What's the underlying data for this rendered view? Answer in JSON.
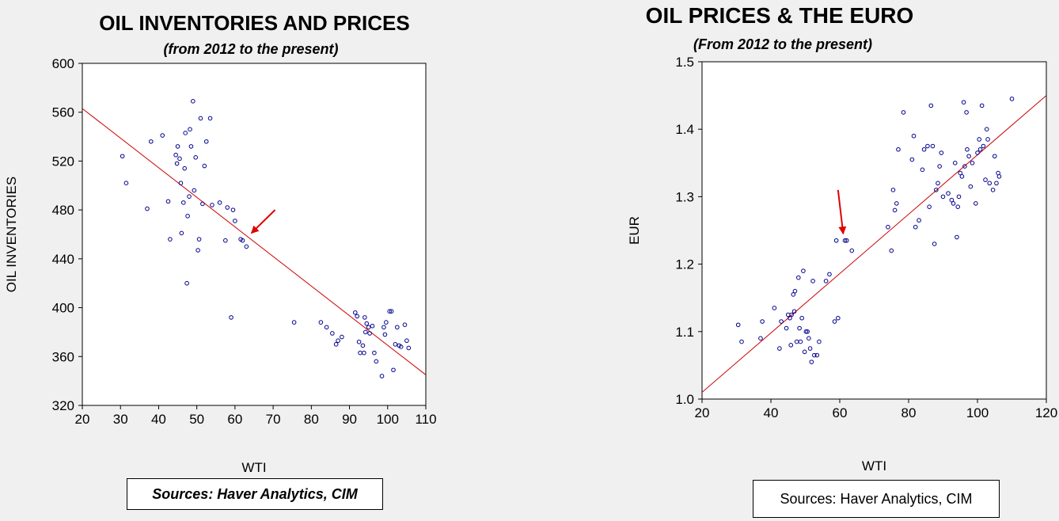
{
  "chart_data": [
    {
      "type": "scatter",
      "title": "OIL INVENTORIES AND PRICES",
      "subtitle": "(from 2012 to the present)",
      "xlabel": "WTI",
      "ylabel": "OIL INVENTORIES",
      "xlim": [
        20,
        110
      ],
      "ylim": [
        320,
        600
      ],
      "xticks": [
        20,
        30,
        40,
        50,
        60,
        70,
        80,
        90,
        100,
        110
      ],
      "yticks": [
        320,
        360,
        400,
        440,
        480,
        520,
        560,
        600
      ],
      "grid": false,
      "marker_color": "#00008b",
      "trend_color": "#cc0000",
      "arrow_color": "#e00000",
      "source": "Sources:  Haver Analytics, CIM",
      "trendline": [
        [
          20,
          563
        ],
        [
          110,
          345
        ]
      ],
      "annotation_arrow": {
        "from": [
          70.5,
          480
        ],
        "to": [
          64.3,
          461
        ]
      },
      "points": [
        [
          30.5,
          524
        ],
        [
          31.5,
          502
        ],
        [
          37,
          481
        ],
        [
          38,
          536
        ],
        [
          41,
          541
        ],
        [
          42.5,
          487
        ],
        [
          43,
          456
        ],
        [
          44.5,
          525
        ],
        [
          44.8,
          518
        ],
        [
          45,
          532
        ],
        [
          45.5,
          522
        ],
        [
          45.8,
          502
        ],
        [
          46,
          461
        ],
        [
          46.5,
          486
        ],
        [
          46.8,
          514
        ],
        [
          47,
          543
        ],
        [
          47.4,
          420
        ],
        [
          47.6,
          475
        ],
        [
          48,
          491
        ],
        [
          48.2,
          546
        ],
        [
          48.5,
          532
        ],
        [
          49,
          569
        ],
        [
          49.3,
          496
        ],
        [
          49.7,
          523
        ],
        [
          50.3,
          447
        ],
        [
          50.6,
          456
        ],
        [
          51,
          555
        ],
        [
          51.5,
          485
        ],
        [
          52,
          516
        ],
        [
          52.5,
          536
        ],
        [
          53.5,
          555
        ],
        [
          54,
          484
        ],
        [
          56,
          486
        ],
        [
          57.5,
          455
        ],
        [
          58,
          482
        ],
        [
          59,
          392
        ],
        [
          59.5,
          480
        ],
        [
          60,
          471
        ],
        [
          61.5,
          456
        ],
        [
          62,
          455
        ],
        [
          63,
          450
        ],
        [
          75.5,
          388
        ],
        [
          82.5,
          388
        ],
        [
          84,
          384
        ],
        [
          85.5,
          379
        ],
        [
          86.5,
          370
        ],
        [
          87,
          373
        ],
        [
          88,
          376
        ],
        [
          91.5,
          396
        ],
        [
          92,
          393
        ],
        [
          92.5,
          372
        ],
        [
          92.8,
          363
        ],
        [
          93.5,
          369
        ],
        [
          93.8,
          363
        ],
        [
          94,
          392
        ],
        [
          94.2,
          380
        ],
        [
          94.5,
          387
        ],
        [
          95,
          384
        ],
        [
          95.3,
          379
        ],
        [
          96,
          385
        ],
        [
          96.5,
          363
        ],
        [
          97,
          356
        ],
        [
          98.5,
          344
        ],
        [
          99,
          384
        ],
        [
          99.3,
          378
        ],
        [
          99.6,
          388
        ],
        [
          100.5,
          397
        ],
        [
          101,
          397
        ],
        [
          101.5,
          349
        ],
        [
          102,
          370
        ],
        [
          102.5,
          384
        ],
        [
          103,
          369
        ],
        [
          103.5,
          368
        ],
        [
          104.5,
          386
        ],
        [
          105,
          373
        ],
        [
          105.5,
          367
        ]
      ]
    },
    {
      "type": "scatter",
      "title": "OIL PRICES & THE EURO",
      "subtitle": "(From 2012 to the present)",
      "xlabel": "WTI",
      "ylabel": "EUR",
      "xlim": [
        20,
        120
      ],
      "ylim": [
        1.0,
        1.5
      ],
      "xticks": [
        20,
        40,
        60,
        80,
        100,
        120
      ],
      "yticks": [
        1.0,
        1.1,
        1.2,
        1.3,
        1.4,
        1.5
      ],
      "grid": false,
      "marker_color": "#00008b",
      "trend_color": "#cc0000",
      "arrow_color": "#e00000",
      "source": "Sources:  Haver Analytics, CIM",
      "trendline": [
        [
          20,
          1.01
        ],
        [
          120,
          1.45
        ]
      ],
      "annotation_arrow": {
        "from": [
          59.5,
          1.31
        ],
        "to": [
          61,
          1.245
        ]
      },
      "points": [
        [
          30.5,
          1.11
        ],
        [
          31.5,
          1.085
        ],
        [
          37,
          1.09
        ],
        [
          37.5,
          1.115
        ],
        [
          41,
          1.135
        ],
        [
          42.5,
          1.075
        ],
        [
          43,
          1.115
        ],
        [
          44.5,
          1.105
        ],
        [
          45,
          1.125
        ],
        [
          45.5,
          1.12
        ],
        [
          45.8,
          1.08
        ],
        [
          46,
          1.125
        ],
        [
          46.5,
          1.155
        ],
        [
          46.8,
          1.13
        ],
        [
          47,
          1.16
        ],
        [
          47.5,
          1.085
        ],
        [
          48,
          1.18
        ],
        [
          48.3,
          1.105
        ],
        [
          48.6,
          1.085
        ],
        [
          49,
          1.12
        ],
        [
          49.4,
          1.19
        ],
        [
          49.8,
          1.07
        ],
        [
          50.2,
          1.1
        ],
        [
          50.6,
          1.1
        ],
        [
          51,
          1.09
        ],
        [
          51.4,
          1.075
        ],
        [
          51.8,
          1.055
        ],
        [
          52.2,
          1.175
        ],
        [
          52.6,
          1.065
        ],
        [
          53.4,
          1.065
        ],
        [
          54,
          1.085
        ],
        [
          56,
          1.175
        ],
        [
          57,
          1.185
        ],
        [
          58.5,
          1.115
        ],
        [
          59,
          1.235
        ],
        [
          59.5,
          1.12
        ],
        [
          61.5,
          1.235
        ],
        [
          62,
          1.235
        ],
        [
          63.5,
          1.22
        ],
        [
          74,
          1.255
        ],
        [
          75,
          1.22
        ],
        [
          75.5,
          1.31
        ],
        [
          76,
          1.28
        ],
        [
          76.5,
          1.29
        ],
        [
          77,
          1.37
        ],
        [
          78.5,
          1.425
        ],
        [
          81,
          1.355
        ],
        [
          81.5,
          1.39
        ],
        [
          82,
          1.255
        ],
        [
          83,
          1.265
        ],
        [
          84,
          1.34
        ],
        [
          84.5,
          1.37
        ],
        [
          85.5,
          1.375
        ],
        [
          86,
          1.285
        ],
        [
          86.5,
          1.435
        ],
        [
          87,
          1.375
        ],
        [
          87.5,
          1.23
        ],
        [
          88,
          1.31
        ],
        [
          88.5,
          1.32
        ],
        [
          89,
          1.345
        ],
        [
          89.5,
          1.365
        ],
        [
          90,
          1.3
        ],
        [
          91.5,
          1.305
        ],
        [
          92.5,
          1.295
        ],
        [
          93,
          1.29
        ],
        [
          93.5,
          1.35
        ],
        [
          94,
          1.24
        ],
        [
          94.3,
          1.285
        ],
        [
          94.6,
          1.3
        ],
        [
          95,
          1.335
        ],
        [
          95.5,
          1.33
        ],
        [
          96,
          1.44
        ],
        [
          96.3,
          1.345
        ],
        [
          96.8,
          1.425
        ],
        [
          97,
          1.37
        ],
        [
          97.5,
          1.36
        ],
        [
          98,
          1.315
        ],
        [
          98.5,
          1.35
        ],
        [
          99.5,
          1.29
        ],
        [
          100,
          1.365
        ],
        [
          100.5,
          1.385
        ],
        [
          100.8,
          1.37
        ],
        [
          101.3,
          1.435
        ],
        [
          101.7,
          1.375
        ],
        [
          102.3,
          1.325
        ],
        [
          102.7,
          1.4
        ],
        [
          103,
          1.385
        ],
        [
          103.5,
          1.32
        ],
        [
          104.5,
          1.31
        ],
        [
          105,
          1.36
        ],
        [
          105.5,
          1.32
        ],
        [
          106,
          1.335
        ],
        [
          106.3,
          1.33
        ],
        [
          110,
          1.445
        ]
      ]
    }
  ]
}
